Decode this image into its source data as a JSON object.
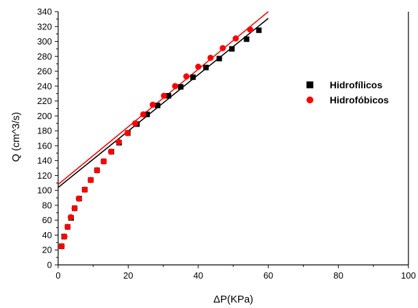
{
  "chart_data": {
    "type": "scatter",
    "xlabel": "ΔP(KPa)",
    "ylabel": "Q (cm^3/s)",
    "xlim": [
      0,
      100
    ],
    "ylim": [
      0,
      340
    ],
    "xticks": [
      0,
      20,
      40,
      60,
      80,
      100
    ],
    "yticks": [
      0,
      20,
      40,
      60,
      80,
      100,
      120,
      140,
      160,
      180,
      200,
      220,
      240,
      260,
      280,
      300,
      320,
      340
    ],
    "grid": false,
    "legend_position": "right",
    "series": [
      {
        "name": "Hidrofílicos",
        "marker": "square",
        "color": "#000000",
        "x": [
          1.0,
          1.7,
          2.7,
          3.7,
          4.7,
          6.0,
          7.6,
          9.3,
          11.1,
          13.0,
          15.2,
          17.4,
          19.9,
          22.5,
          25.4,
          28.4,
          31.5,
          35.0,
          38.5,
          42.2,
          46.0,
          49.6,
          53.8,
          57.3
        ],
        "y": [
          25,
          38,
          51,
          63,
          76,
          89,
          101,
          114,
          127,
          139,
          152,
          164,
          177,
          189,
          202,
          214,
          227,
          239,
          252,
          265,
          277,
          290,
          303,
          315
        ]
      },
      {
        "name": "Hidrofóbicos",
        "marker": "circle",
        "color": "#ff0000",
        "x": [
          1.0,
          1.8,
          2.7,
          3.6,
          4.7,
          5.9,
          7.6,
          9.3,
          11.1,
          13.0,
          15.1,
          17.3,
          19.8,
          22.0,
          24.3,
          27.0,
          30.2,
          33.4,
          36.6,
          40.0,
          43.5,
          47.0,
          50.7,
          54.8
        ],
        "y": [
          25,
          38,
          51,
          64,
          76,
          89,
          101,
          114,
          127,
          139,
          152,
          165,
          177,
          190,
          202,
          215,
          227,
          240,
          253,
          266,
          278,
          291,
          304,
          316
        ]
      }
    ],
    "fit_lines": [
      {
        "color": "#000000",
        "x": [
          0,
          60
        ],
        "y": [
          104,
          331
        ]
      },
      {
        "color": "#ff0000",
        "x": [
          0,
          60
        ],
        "y": [
          108,
          340
        ]
      }
    ]
  }
}
